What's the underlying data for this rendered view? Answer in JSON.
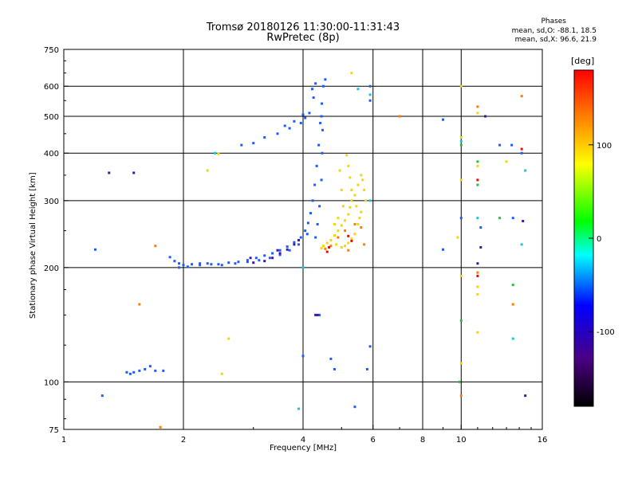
{
  "header": {
    "title_line1": "Tromsø 20180126 11:30:00-11:31:43",
    "title_line2": "RwPretec (8p)"
  },
  "stats": {
    "heading": "Phases",
    "line_o": "mean, sd,O: -88.1, 18.5",
    "line_x": "mean, sd,X:  96.6, 21.9"
  },
  "chart_data": {
    "type": "scatter",
    "xlabel": "Frequency [MHz]",
    "ylabel": "Stationary phase Virtual Height [km]",
    "x_scale": "log",
    "y_scale": "log",
    "xlim": [
      1,
      16
    ],
    "ylim": [
      75,
      750
    ],
    "x_ticks": [
      1,
      2,
      4,
      6,
      8,
      10,
      16
    ],
    "x_tick_labels": [
      "1",
      "2",
      "4",
      "6",
      "8",
      "10",
      "16"
    ],
    "x_gridlines": [
      2,
      4,
      6,
      8,
      10
    ],
    "y_ticks": [
      75,
      100,
      200,
      300,
      400,
      500,
      600,
      750
    ],
    "y_tick_labels": [
      "75",
      "100",
      "200",
      "300",
      "400",
      "500",
      "600",
      "750"
    ],
    "y_gridlines": [
      100,
      200,
      300,
      400,
      500,
      600
    ],
    "grid": true,
    "colorbar": {
      "label": "[deg]",
      "range": [
        -180,
        180
      ],
      "ticks": [
        100,
        0,
        -100
      ],
      "tick_labels": [
        "100",
        "0",
        "-100"
      ],
      "colors": [
        "#000000",
        "#4b0082",
        "#0000ff",
        "#00ffff",
        "#00ff00",
        "#ffff00",
        "#ff8000",
        "#ff0000"
      ]
    },
    "series": [
      {
        "mode": "O",
        "color": "#1c5cff",
        "points": [
          [
            1.44,
            106
          ],
          [
            1.47,
            105
          ],
          [
            1.5,
            106
          ],
          [
            1.55,
            107
          ],
          [
            1.6,
            108
          ],
          [
            1.65,
            110
          ],
          [
            1.7,
            107
          ],
          [
            1.78,
            107
          ],
          [
            1.85,
            213
          ],
          [
            1.9,
            208
          ],
          [
            1.95,
            205
          ],
          [
            2.0,
            203
          ],
          [
            2.1,
            204
          ],
          [
            2.2,
            205
          ],
          [
            2.3,
            205
          ],
          [
            2.45,
            204
          ],
          [
            2.6,
            206
          ],
          [
            2.75,
            207
          ],
          [
            2.9,
            209
          ],
          [
            3.05,
            212
          ],
          [
            3.2,
            215
          ],
          [
            3.35,
            218
          ],
          [
            3.5,
            222
          ],
          [
            3.65,
            227
          ],
          [
            3.8,
            233
          ],
          [
            3.95,
            240
          ],
          [
            4.05,
            250
          ],
          [
            4.12,
            262
          ],
          [
            4.18,
            278
          ],
          [
            4.23,
            300
          ],
          [
            4.28,
            330
          ],
          [
            4.33,
            370
          ],
          [
            4.38,
            420
          ],
          [
            4.42,
            480
          ],
          [
            4.46,
            540
          ],
          [
            4.5,
            600
          ],
          [
            4.55,
            625
          ],
          [
            4.25,
            560
          ],
          [
            4.15,
            510
          ],
          [
            4.05,
            495
          ],
          [
            3.95,
            480
          ],
          [
            3.7,
            465
          ],
          [
            3.45,
            450
          ],
          [
            3.2,
            440
          ],
          [
            3.0,
            425
          ],
          [
            2.8,
            420
          ],
          [
            3.6,
            472
          ],
          [
            3.8,
            485
          ],
          [
            4.0,
            505
          ],
          [
            4.22,
            590
          ],
          [
            4.3,
            610
          ],
          [
            4.48,
            460
          ],
          [
            4.47,
            400
          ],
          [
            4.45,
            340
          ],
          [
            4.4,
            290
          ],
          [
            4.35,
            260
          ],
          [
            4.3,
            240
          ],
          [
            4.1,
            245
          ],
          [
            3.9,
            230
          ],
          [
            3.7,
            222
          ],
          [
            3.5,
            216
          ],
          [
            3.3,
            212
          ],
          [
            3.1,
            209
          ],
          [
            2.9,
            207
          ],
          [
            2.7,
            205
          ],
          [
            2.5,
            203
          ],
          [
            2.35,
            204
          ],
          [
            2.2,
            203
          ],
          [
            2.05,
            201
          ],
          [
            1.95,
            200
          ],
          [
            4.4,
            150
          ],
          [
            4.45,
            500
          ],
          [
            5.9,
            600
          ],
          [
            5.9,
            550
          ],
          [
            5.9,
            124
          ],
          [
            5.8,
            108
          ],
          [
            5.4,
            86
          ],
          [
            4.8,
            108
          ],
          [
            4.7,
            115
          ],
          [
            4.0,
            117
          ],
          [
            9.0,
            490
          ],
          [
            9.0,
            223
          ],
          [
            10.0,
            270
          ],
          [
            11.2,
            255
          ],
          [
            13.5,
            270
          ],
          [
            14.2,
            400
          ],
          [
            13.4,
            420
          ],
          [
            12.5,
            420
          ],
          [
            1.25,
            92
          ],
          [
            1.2,
            223
          ]
        ]
      },
      {
        "mode": "O-dark",
        "color": "#3a17a8",
        "points": [
          [
            3.2,
            208
          ],
          [
            3.35,
            212
          ],
          [
            3.5,
            218
          ],
          [
            3.65,
            223
          ],
          [
            3.8,
            230
          ],
          [
            3.9,
            236
          ],
          [
            3.0,
            206
          ],
          [
            2.95,
            212
          ],
          [
            3.45,
            222
          ],
          [
            4.35,
            150
          ],
          [
            4.3,
            150
          ],
          [
            1.5,
            355
          ],
          [
            1.3,
            355
          ],
          [
            11.0,
            205
          ],
          [
            11.2,
            226
          ],
          [
            11.5,
            500
          ],
          [
            14.5,
            92
          ],
          [
            14.3,
            265
          ]
        ]
      },
      {
        "mode": "X",
        "color": "#f0d800",
        "points": [
          [
            4.45,
            225
          ],
          [
            4.5,
            228
          ],
          [
            4.6,
            232
          ],
          [
            4.7,
            236
          ],
          [
            4.8,
            243
          ],
          [
            4.9,
            250
          ],
          [
            5.0,
            258
          ],
          [
            5.1,
            266
          ],
          [
            5.2,
            276
          ],
          [
            5.25,
            288
          ],
          [
            5.3,
            300
          ],
          [
            5.3,
            320
          ],
          [
            5.25,
            345
          ],
          [
            5.2,
            370
          ],
          [
            5.15,
            395
          ],
          [
            4.95,
            360
          ],
          [
            5.0,
            320
          ],
          [
            5.05,
            290
          ],
          [
            4.9,
            270
          ],
          [
            4.8,
            260
          ],
          [
            5.4,
            310
          ],
          [
            5.5,
            330
          ],
          [
            5.6,
            350
          ],
          [
            5.7,
            320
          ],
          [
            5.75,
            300
          ],
          [
            5.6,
            280
          ],
          [
            5.5,
            260
          ],
          [
            5.4,
            245
          ],
          [
            5.3,
            238
          ],
          [
            5.2,
            232
          ],
          [
            5.1,
            228
          ],
          [
            5.0,
            226
          ],
          [
            4.85,
            230
          ],
          [
            5.45,
            290
          ],
          [
            5.55,
            270
          ],
          [
            5.65,
            340
          ],
          [
            5.3,
            650
          ],
          [
            10.0,
            600
          ],
          [
            10.0,
            440
          ],
          [
            10.0,
            340
          ],
          [
            11.0,
            510
          ],
          [
            11.0,
            370
          ],
          [
            13.0,
            380
          ],
          [
            9.8,
            240
          ],
          [
            10.0,
            190
          ],
          [
            11.0,
            178
          ],
          [
            11.0,
            170
          ],
          [
            11.0,
            135
          ],
          [
            10.0,
            112
          ],
          [
            2.3,
            360
          ],
          [
            2.5,
            105
          ],
          [
            2.6,
            130
          ],
          [
            2.45,
            398
          ]
        ]
      },
      {
        "mode": "X-orange",
        "color": "#ff7a00",
        "points": [
          [
            4.55,
            224
          ],
          [
            4.7,
            228
          ],
          [
            4.9,
            240
          ],
          [
            5.1,
            250
          ],
          [
            5.4,
            260
          ],
          [
            5.6,
            255
          ],
          [
            5.7,
            230
          ],
          [
            5.2,
            222
          ],
          [
            1.55,
            160
          ],
          [
            1.75,
            76
          ],
          [
            1.7,
            228
          ],
          [
            11.0,
            530
          ],
          [
            11.0,
            194
          ],
          [
            7.0,
            500
          ],
          [
            10.0,
            92
          ],
          [
            13.5,
            160
          ],
          [
            14.2,
            565
          ]
        ]
      },
      {
        "mode": "X-red",
        "color": "#ff0000",
        "points": [
          [
            4.65,
            226
          ],
          [
            5.2,
            242
          ],
          [
            5.3,
            235
          ],
          [
            11.0,
            340
          ],
          [
            11.0,
            190
          ],
          [
            14.2,
            410
          ],
          [
            4.6,
            220
          ]
        ]
      },
      {
        "mode": "X-green",
        "color": "#20c040",
        "points": [
          [
            10.0,
            420
          ],
          [
            11.0,
            380
          ],
          [
            11.0,
            330
          ],
          [
            12.5,
            270
          ],
          [
            13.5,
            180
          ],
          [
            9.9,
            100
          ],
          [
            10.0,
            145
          ]
        ]
      },
      {
        "mode": "X-cyan",
        "color": "#10c8e0",
        "points": [
          [
            5.9,
            570
          ],
          [
            5.9,
            300
          ],
          [
            5.5,
            590
          ],
          [
            10.0,
            430
          ],
          [
            11.0,
            270
          ],
          [
            13.5,
            130
          ],
          [
            14.2,
            230
          ],
          [
            14.5,
            360
          ],
          [
            4.0,
            200
          ],
          [
            2.4,
            400
          ],
          [
            3.9,
            85
          ]
        ]
      }
    ]
  }
}
